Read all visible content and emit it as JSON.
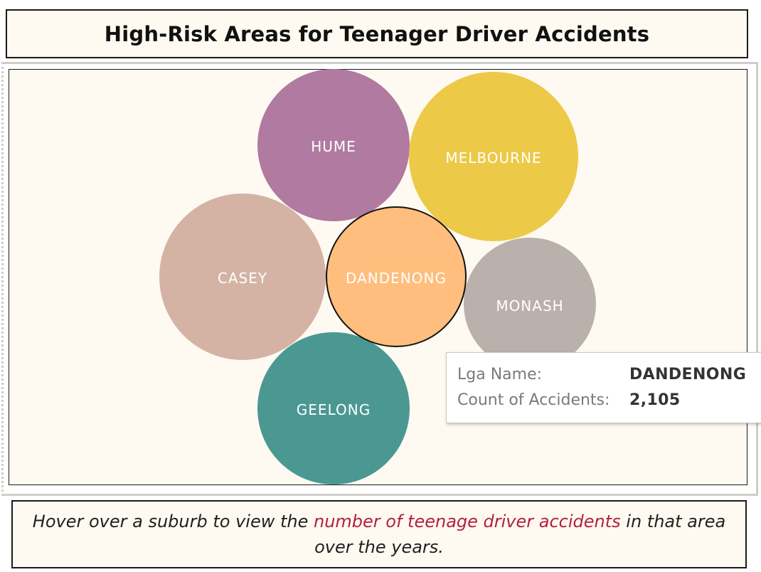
{
  "header": {
    "title": "High-Risk Areas for Teenager Driver Accidents"
  },
  "chart_data": {
    "type": "bubble",
    "highlighted": "DANDENONG",
    "bubbles": [
      {
        "name": "HUME",
        "color": "#b07aa1"
      },
      {
        "name": "MELBOURNE",
        "color": "#edc948"
      },
      {
        "name": "CASEY",
        "color": "#d4b3a5"
      },
      {
        "name": "DANDENONG",
        "color": "#ffbe7d",
        "value": 2105
      },
      {
        "name": "MONASH",
        "color": "#bab0ac"
      },
      {
        "name": "GEELONG",
        "color": "#4b9893"
      }
    ]
  },
  "tooltip": {
    "name_label": "Lga Name:",
    "name_value": "DANDENONG",
    "count_label": "Count of Accidents:",
    "count_value": "2,105"
  },
  "caption": {
    "before": "Hover over a suburb to view the ",
    "highlight": "number of teenage driver accidents",
    "after": " in that area over the years.",
    "highlight_color": "#b2203f"
  }
}
